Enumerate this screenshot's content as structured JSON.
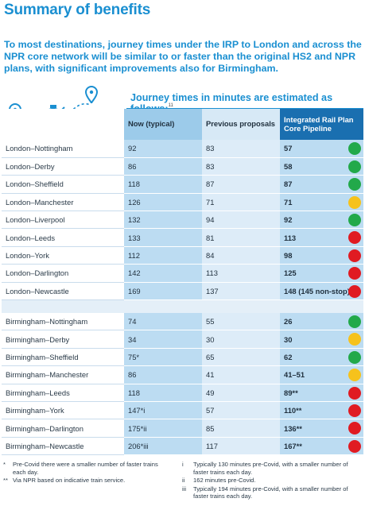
{
  "title": "Summary of benefits",
  "intro": "To most destinations, journey times under the IRP to London and across the NPR core network will be similar to or faster than the original HS2 and NPR plans, with significant improvements also for Birmingham.",
  "subheading": "Journey times in minutes are estimated as follows:",
  "subheading_ref": "11",
  "icons": [
    "location-pin-icon",
    "stopwatch-icon",
    "location-pin-icon"
  ],
  "colors": {
    "accent": "#1a8fd1",
    "green": "#22a94a",
    "amber": "#f6c21c",
    "red": "#e01b22"
  },
  "columns": [
    "",
    "Now (typical)",
    "Previous proposals",
    "Integrated Rail Plan Core Pipeline"
  ],
  "london_rows": [
    {
      "route": "London–Nottingham",
      "now": "92",
      "previous": "83",
      "irp": "57",
      "status": "green"
    },
    {
      "route": "London–Derby",
      "now": "86",
      "previous": "83",
      "irp": "58",
      "status": "green"
    },
    {
      "route": "London–Sheffield",
      "now": "118",
      "previous": "87",
      "irp": "87",
      "status": "green"
    },
    {
      "route": "London–Manchester",
      "now": "126",
      "previous": "71",
      "irp": "71",
      "status": "amber"
    },
    {
      "route": "London–Liverpool",
      "now": "132",
      "previous": "94",
      "irp": "92",
      "status": "green"
    },
    {
      "route": "London–Leeds",
      "now": "133",
      "previous": "81",
      "irp": "113",
      "status": "red"
    },
    {
      "route": "London–York",
      "now": "112",
      "previous": "84",
      "irp": "98",
      "status": "red"
    },
    {
      "route": "London–Darlington",
      "now": "142",
      "previous": "113",
      "irp": "125",
      "status": "red"
    },
    {
      "route": "London–Newcastle",
      "now": "169",
      "previous": "137",
      "irp": "148 (145 non-stop)",
      "status": "red"
    }
  ],
  "birmingham_rows": [
    {
      "route": "Birmingham–Nottingham",
      "now": "74",
      "previous": "55",
      "irp": "26",
      "status": "green"
    },
    {
      "route": "Birmingham–Derby",
      "now": "34",
      "previous": "30",
      "irp": "30",
      "status": "amber"
    },
    {
      "route": "Birmingham–Sheffield",
      "now": "75*",
      "previous": "65",
      "irp": "62",
      "status": "green"
    },
    {
      "route": "Birmingham–Manchester",
      "now": "86",
      "previous": "41",
      "irp": "41–51",
      "status": "amber"
    },
    {
      "route": "Birmingham–Leeds",
      "now": "118",
      "previous": "49",
      "irp": "89**",
      "status": "red"
    },
    {
      "route": "Birmingham–York",
      "now": "147*i",
      "previous": "57",
      "irp": "110**",
      "status": "red"
    },
    {
      "route": "Birmingham–Darlington",
      "now": "175*ii",
      "previous": "85",
      "irp": "136**",
      "status": "red"
    },
    {
      "route": "Birmingham–Newcastle",
      "now": "206*iii",
      "previous": "117",
      "irp": "167**",
      "status": "red"
    }
  ],
  "notes_left": [
    {
      "mark": "*",
      "text": "Pre-Covid there were a smaller number of faster trains each day."
    },
    {
      "mark": "**",
      "text": "Via NPR based on indicative train service."
    }
  ],
  "notes_right": [
    {
      "mark": "i",
      "text": "Typically 130 minutes pre-Covid, with a smaller number of faster trains each day."
    },
    {
      "mark": "ii",
      "text": "162 minutes pre-Covid."
    },
    {
      "mark": "iii",
      "text": "Typically 194 minutes pre-Covid, with a smaller number of faster trains each day."
    }
  ]
}
